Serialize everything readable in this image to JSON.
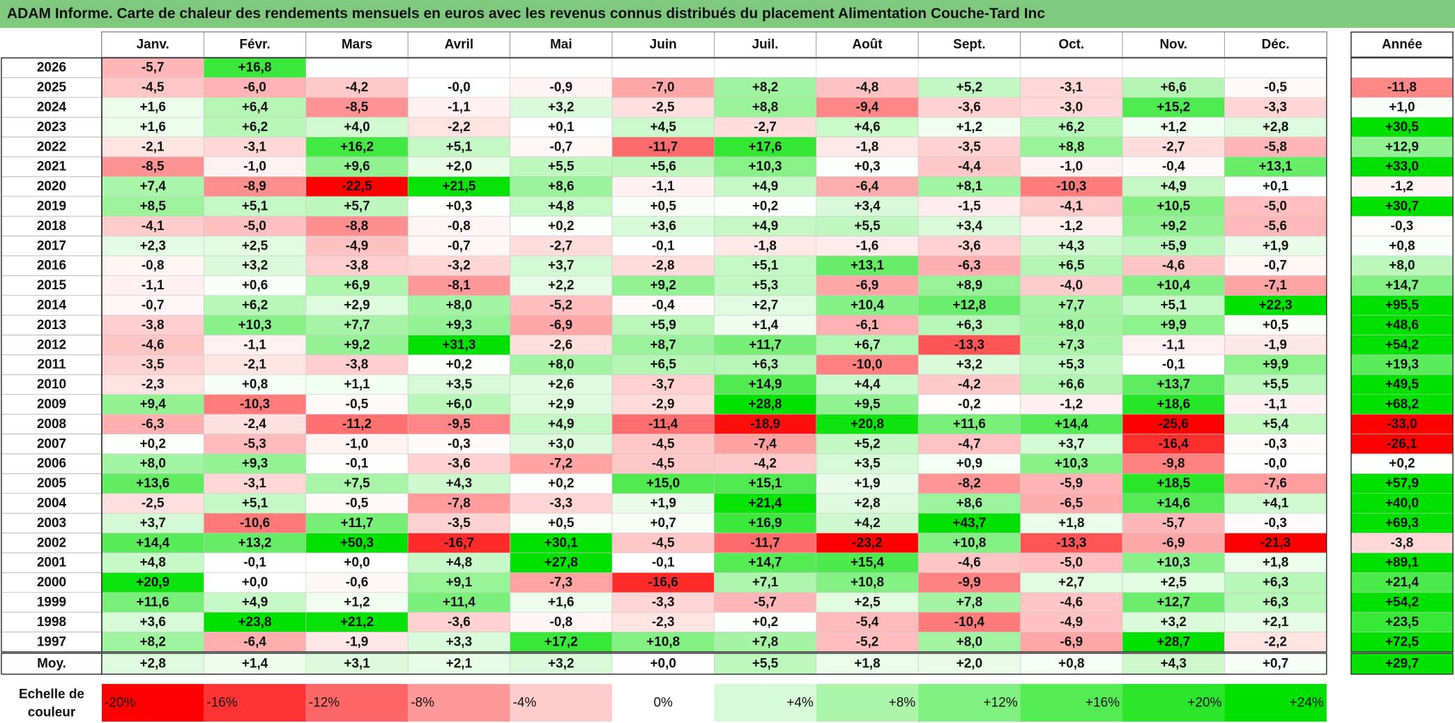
{
  "title": "ADAM Informe. Carte de chaleur des rendements mensuels en euros avec les revenus connus distribués du placement Alimentation Couche-Tard Inc",
  "chart_data": {
    "type": "heatmap",
    "title": "ADAM Informe. Carte de chaleur des rendements mensuels en euros avec les revenus connus distribués du placement Alimentation Couche-Tard Inc",
    "columns": [
      "Janv.",
      "Févr.",
      "Mars",
      "Avril",
      "Mai",
      "Juin",
      "Juil.",
      "Août",
      "Sept.",
      "Oct.",
      "Nov.",
      "Déc."
    ],
    "year_header": "Année",
    "rows": [
      {
        "year": "2026",
        "months": [
          -5.7,
          16.8,
          null,
          null,
          null,
          null,
          null,
          null,
          null,
          null,
          null,
          null
        ],
        "annual": null
      },
      {
        "year": "2025",
        "months": [
          -4.5,
          -6.0,
          -4.2,
          -0.0,
          -0.9,
          -7.0,
          8.2,
          -4.8,
          5.2,
          -3.1,
          6.6,
          -0.5
        ],
        "annual": -11.8
      },
      {
        "year": "2024",
        "months": [
          1.6,
          6.4,
          -8.5,
          -1.1,
          3.2,
          -2.5,
          8.8,
          -9.4,
          -3.6,
          -3.0,
          15.2,
          -3.3
        ],
        "annual": 1.0
      },
      {
        "year": "2023",
        "months": [
          1.6,
          6.2,
          4.0,
          -2.2,
          0.1,
          4.5,
          -2.7,
          4.6,
          1.2,
          6.2,
          1.2,
          2.8
        ],
        "annual": 30.5
      },
      {
        "year": "2022",
        "months": [
          -2.1,
          -3.1,
          16.2,
          5.1,
          -0.7,
          -11.7,
          17.6,
          -1.8,
          -3.5,
          8.8,
          -2.7,
          -5.8
        ],
        "annual": 12.9
      },
      {
        "year": "2021",
        "months": [
          -8.5,
          -1.0,
          9.6,
          2.0,
          5.5,
          5.6,
          10.3,
          0.3,
          -4.4,
          -1.0,
          -0.4,
          13.1
        ],
        "annual": 33.0
      },
      {
        "year": "2020",
        "months": [
          7.4,
          -8.9,
          -22.5,
          21.5,
          8.6,
          -1.1,
          4.9,
          -6.4,
          8.1,
          -10.3,
          4.9,
          0.1
        ],
        "annual": -1.2
      },
      {
        "year": "2019",
        "months": [
          8.5,
          5.1,
          5.7,
          0.3,
          4.8,
          0.5,
          0.2,
          3.4,
          -1.5,
          -4.1,
          10.5,
          -5.0
        ],
        "annual": 30.7
      },
      {
        "year": "2018",
        "months": [
          -4.1,
          -5.0,
          -8.8,
          -0.8,
          0.2,
          3.6,
          4.9,
          5.5,
          3.4,
          -1.2,
          9.2,
          -5.6
        ],
        "annual": -0.3
      },
      {
        "year": "2017",
        "months": [
          2.3,
          2.5,
          -4.9,
          -0.7,
          -2.7,
          -0.1,
          -1.8,
          -1.6,
          -3.6,
          4.3,
          5.9,
          1.9
        ],
        "annual": 0.8
      },
      {
        "year": "2016",
        "months": [
          -0.8,
          3.2,
          -3.8,
          -3.2,
          3.7,
          -2.8,
          5.1,
          13.1,
          -6.3,
          6.5,
          -4.6,
          -0.7
        ],
        "annual": 8.0
      },
      {
        "year": "2015",
        "months": [
          -1.1,
          0.6,
          6.9,
          -8.1,
          2.2,
          9.2,
          5.3,
          -6.9,
          8.9,
          -4.0,
          10.4,
          -7.1
        ],
        "annual": 14.7
      },
      {
        "year": "2014",
        "months": [
          -0.7,
          6.2,
          2.9,
          8.0,
          -5.2,
          -0.4,
          2.7,
          10.4,
          12.8,
          7.7,
          5.1,
          22.3
        ],
        "annual": 95.5
      },
      {
        "year": "2013",
        "months": [
          -3.8,
          10.3,
          7.7,
          9.3,
          -6.9,
          5.9,
          1.4,
          -6.1,
          6.3,
          8.0,
          9.9,
          0.5
        ],
        "annual": 48.6
      },
      {
        "year": "2012",
        "months": [
          -4.6,
          -1.1,
          9.2,
          31.3,
          -2.6,
          8.7,
          11.7,
          6.7,
          -13.3,
          7.3,
          -1.1,
          -1.9
        ],
        "annual": 54.2
      },
      {
        "year": "2011",
        "months": [
          -3.5,
          -2.1,
          -3.8,
          0.2,
          8.0,
          6.5,
          6.3,
          -10.0,
          3.2,
          5.3,
          -0.1,
          9.9
        ],
        "annual": 19.3
      },
      {
        "year": "2010",
        "months": [
          -2.3,
          0.8,
          1.1,
          3.5,
          2.6,
          -3.7,
          14.9,
          4.4,
          -4.2,
          6.6,
          13.7,
          5.5
        ],
        "annual": 49.5
      },
      {
        "year": "2009",
        "months": [
          9.4,
          -10.3,
          -0.5,
          6.0,
          2.9,
          -2.9,
          28.8,
          9.5,
          -0.2,
          -1.2,
          18.6,
          -1.1
        ],
        "annual": 68.2
      },
      {
        "year": "2008",
        "months": [
          -6.3,
          -2.4,
          -11.2,
          -9.5,
          4.9,
          -11.4,
          -18.9,
          20.8,
          11.6,
          14.4,
          -25.6,
          5.4
        ],
        "annual": -33.0
      },
      {
        "year": "2007",
        "months": [
          0.2,
          -5.3,
          -1.0,
          -0.3,
          3.0,
          -4.5,
          -7.4,
          5.2,
          -4.7,
          3.7,
          -16.4,
          -0.3
        ],
        "annual": -26.1
      },
      {
        "year": "2006",
        "months": [
          8.0,
          9.3,
          -0.1,
          -3.6,
          -7.2,
          -4.5,
          -4.2,
          3.5,
          0.9,
          10.3,
          -9.8,
          -0.0
        ],
        "annual": 0.2
      },
      {
        "year": "2005",
        "months": [
          13.6,
          -3.1,
          7.5,
          4.3,
          0.2,
          15.0,
          15.1,
          1.9,
          -8.2,
          -5.9,
          18.5,
          -7.6
        ],
        "annual": 57.9
      },
      {
        "year": "2004",
        "months": [
          -2.5,
          5.1,
          -0.5,
          -7.8,
          -3.3,
          1.9,
          21.4,
          2.8,
          8.6,
          -6.5,
          14.6,
          4.1
        ],
        "annual": 40.0
      },
      {
        "year": "2003",
        "months": [
          3.7,
          -10.6,
          11.7,
          -3.5,
          0.5,
          0.7,
          16.9,
          4.2,
          43.7,
          1.8,
          -5.7,
          -0.3
        ],
        "annual": 69.3
      },
      {
        "year": "2002",
        "months": [
          14.4,
          13.2,
          50.3,
          -16.7,
          30.1,
          -4.5,
          -11.7,
          -23.2,
          10.8,
          -13.3,
          -6.9,
          -21.3
        ],
        "annual": -3.8
      },
      {
        "year": "2001",
        "months": [
          4.8,
          -0.1,
          0.0,
          4.8,
          27.8,
          -0.1,
          14.7,
          15.4,
          -4.6,
          -5.0,
          10.3,
          1.8
        ],
        "annual": 89.1
      },
      {
        "year": "2000",
        "months": [
          20.9,
          0.0,
          -0.6,
          9.1,
          -7.3,
          -16.6,
          7.1,
          10.8,
          -9.9,
          2.7,
          2.5,
          6.3
        ],
        "annual": 21.4
      },
      {
        "year": "1999",
        "months": [
          11.6,
          4.9,
          1.2,
          11.4,
          1.6,
          -3.3,
          -5.7,
          2.5,
          7.8,
          -4.6,
          12.7,
          6.3
        ],
        "annual": 54.2
      },
      {
        "year": "1998",
        "months": [
          3.6,
          23.8,
          21.2,
          -3.6,
          -0.8,
          -2.3,
          0.2,
          -5.4,
          -10.4,
          -4.9,
          3.2,
          2.1
        ],
        "annual": 23.5
      },
      {
        "year": "1997",
        "months": [
          8.2,
          -6.4,
          -1.9,
          3.3,
          17.2,
          10.8,
          7.8,
          -5.2,
          8.0,
          -6.9,
          28.7,
          -2.2
        ],
        "annual": 72.5
      }
    ],
    "average_label": "Moy.",
    "average": {
      "months": [
        2.8,
        1.4,
        3.1,
        2.1,
        3.2,
        0.0,
        5.5,
        1.8,
        2.0,
        0.8,
        4.3,
        0.7
      ],
      "annual": 29.7
    },
    "scale_label_line1": "Echelle de",
    "scale_label_line2": "couleur",
    "scale": [
      "-20%",
      "-16%",
      "-12%",
      "-8%",
      "-4%",
      "0%",
      "+4%",
      "+8%",
      "+12%",
      "+16%",
      "+20%",
      "+24%"
    ],
    "scale_values": [
      -20,
      -16,
      -12,
      -8,
      -4,
      0,
      4,
      8,
      12,
      16,
      20,
      24
    ],
    "colors": {
      "negative": "#ff0000",
      "positive": "#00e100",
      "neutral": "#ffffff",
      "title_bar": "#7fc97f"
    }
  }
}
